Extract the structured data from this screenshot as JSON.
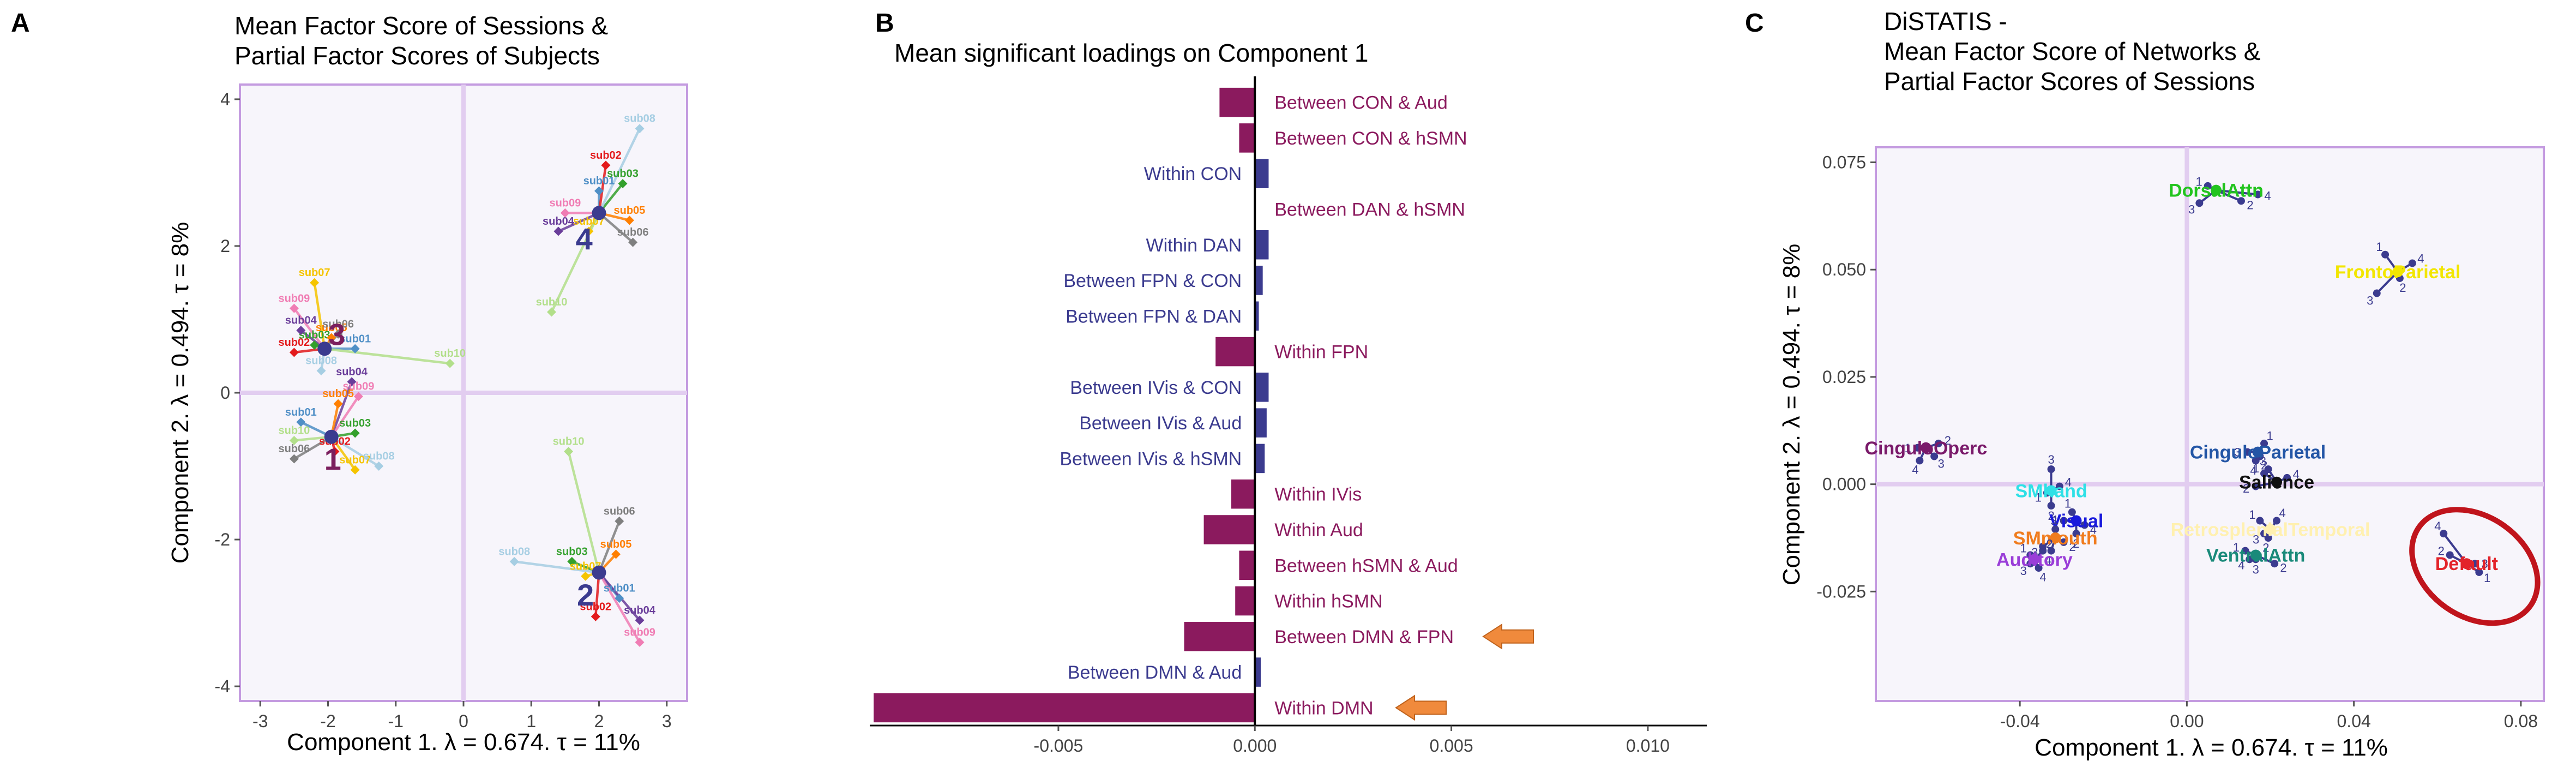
{
  "chart_data": [
    {
      "panel_letter": "A",
      "type": "scatter",
      "title": [
        "Mean Factor Score of Sessions &",
        "Partial Factor Scores of Subjects"
      ],
      "xlabel": "Component 1.   λ = 0.674.   τ = 11%",
      "ylabel": "Component 2.   λ = 0.494.   τ = 8%",
      "xlim": [
        -3.3,
        3.3
      ],
      "ylim": [
        -4.2,
        4.2
      ],
      "xticks": [
        -3,
        -2,
        -1,
        0,
        1,
        2,
        3
      ],
      "yticks": [
        -4,
        -2,
        0,
        2,
        4
      ],
      "center_color": "#3b3b8f",
      "groups": [
        {
          "label": "1",
          "label_color": "#7b1f5e",
          "center": [
            -1.95,
            -0.6
          ],
          "label_offset": [
            0.02,
            -0.3
          ],
          "subjects": [
            {
              "name": "sub01",
              "x": -2.4,
              "y": -0.4,
              "color": "#4f8fc6"
            },
            {
              "name": "sub02",
              "x": -1.9,
              "y": -0.8,
              "color": "#e31a1c"
            },
            {
              "name": "sub03",
              "x": -1.6,
              "y": -0.55,
              "color": "#33a02c"
            },
            {
              "name": "sub04",
              "x": -1.65,
              "y": 0.15,
              "color": "#6a3d9a"
            },
            {
              "name": "sub05",
              "x": -1.85,
              "y": -0.15,
              "color": "#ff7f00"
            },
            {
              "name": "sub06",
              "x": -2.5,
              "y": -0.9,
              "color": "#7f7f7f"
            },
            {
              "name": "sub07",
              "x": -1.6,
              "y": -1.05,
              "color": "#f5c400"
            },
            {
              "name": "sub08",
              "x": -1.25,
              "y": -1.0,
              "color": "#a6cee3"
            },
            {
              "name": "sub09",
              "x": -1.55,
              "y": -0.05,
              "color": "#f07db4"
            },
            {
              "name": "sub10",
              "x": -2.5,
              "y": -0.65,
              "color": "#b2df8a"
            }
          ]
        },
        {
          "label": "2",
          "label_color": "#3b3b8f",
          "center": [
            2.0,
            -2.45
          ],
          "label_offset": [
            -0.2,
            -0.3
          ],
          "subjects": [
            {
              "name": "sub01",
              "x": 2.3,
              "y": -2.8,
              "color": "#4f8fc6"
            },
            {
              "name": "sub02",
              "x": 1.95,
              "y": -3.05,
              "color": "#e31a1c"
            },
            {
              "name": "sub03",
              "x": 1.6,
              "y": -2.3,
              "color": "#33a02c"
            },
            {
              "name": "sub04",
              "x": 2.6,
              "y": -3.1,
              "color": "#6a3d9a"
            },
            {
              "name": "sub05",
              "x": 2.25,
              "y": -2.2,
              "color": "#ff7f00"
            },
            {
              "name": "sub06",
              "x": 2.3,
              "y": -1.75,
              "color": "#7f7f7f"
            },
            {
              "name": "sub07",
              "x": 1.8,
              "y": -2.5,
              "color": "#f5c400"
            },
            {
              "name": "sub08",
              "x": 0.75,
              "y": -2.3,
              "color": "#a6cee3"
            },
            {
              "name": "sub09",
              "x": 2.6,
              "y": -3.4,
              "color": "#f07db4"
            },
            {
              "name": "sub10",
              "x": 1.55,
              "y": -0.8,
              "color": "#b2df8a"
            }
          ]
        },
        {
          "label": "3",
          "label_color": "#7b1f5e",
          "center": [
            -2.05,
            0.6
          ],
          "label_offset": [
            0.18,
            0.2
          ],
          "subjects": [
            {
              "name": "sub01",
              "x": -1.6,
              "y": 0.6,
              "color": "#4f8fc6"
            },
            {
              "name": "sub02",
              "x": -2.5,
              "y": 0.55,
              "color": "#e31a1c"
            },
            {
              "name": "sub03",
              "x": -2.2,
              "y": 0.65,
              "color": "#33a02c"
            },
            {
              "name": "sub04",
              "x": -2.4,
              "y": 0.85,
              "color": "#6a3d9a"
            },
            {
              "name": "sub05",
              "x": -1.95,
              "y": 0.75,
              "color": "#ff7f00"
            },
            {
              "name": "sub06",
              "x": -1.85,
              "y": 0.8,
              "color": "#7f7f7f"
            },
            {
              "name": "sub07",
              "x": -2.2,
              "y": 1.5,
              "color": "#f5c400"
            },
            {
              "name": "sub08",
              "x": -2.1,
              "y": 0.3,
              "color": "#a6cee3"
            },
            {
              "name": "sub09",
              "x": -2.5,
              "y": 1.15,
              "color": "#f07db4"
            },
            {
              "name": "sub10",
              "x": -0.2,
              "y": 0.4,
              "color": "#b2df8a"
            }
          ]
        },
        {
          "label": "4",
          "label_color": "#3b3b8f",
          "center": [
            2.0,
            2.45
          ],
          "label_offset": [
            -0.22,
            -0.35
          ],
          "subjects": [
            {
              "name": "sub01",
              "x": 2.0,
              "y": 2.75,
              "color": "#4f8fc6"
            },
            {
              "name": "sub02",
              "x": 2.1,
              "y": 3.1,
              "color": "#e31a1c"
            },
            {
              "name": "sub03",
              "x": 2.35,
              "y": 2.85,
              "color": "#33a02c"
            },
            {
              "name": "sub04",
              "x": 1.4,
              "y": 2.2,
              "color": "#6a3d9a"
            },
            {
              "name": "sub05",
              "x": 2.45,
              "y": 2.35,
              "color": "#ff7f00"
            },
            {
              "name": "sub06",
              "x": 2.5,
              "y": 2.05,
              "color": "#7f7f7f"
            },
            {
              "name": "sub07",
              "x": 1.85,
              "y": 2.2,
              "color": "#f5c400"
            },
            {
              "name": "sub08",
              "x": 2.6,
              "y": 3.6,
              "color": "#a6cee3"
            },
            {
              "name": "sub09",
              "x": 1.5,
              "y": 2.45,
              "color": "#f07db4"
            },
            {
              "name": "sub10",
              "x": 1.3,
              "y": 1.1,
              "color": "#b2df8a"
            }
          ]
        }
      ]
    },
    {
      "panel_letter": "B",
      "type": "bar",
      "title": "Mean significant loadings on Component 1",
      "xlim": [
        -0.0098,
        0.0115
      ],
      "xticks": [
        -0.005,
        0.0,
        0.005,
        0.01
      ],
      "xtick_labels": [
        "-0.005",
        "0.000",
        "0.005",
        "0.010"
      ],
      "colors": {
        "negative": "#8b1a5e",
        "positive": "#3b3b8f",
        "arrow": "#f08a3c",
        "arrow_stroke": "#c0631d"
      },
      "categories": [
        "Between CON & Aud",
        "Between CON & hSMN",
        "Within CON",
        "Between DAN & hSMN",
        "Within DAN",
        "Between FPN & CON",
        "Between FPN & DAN",
        "Within FPN",
        "Between IVis & CON",
        "Between IVis & Aud",
        "Between IVis & hSMN",
        "Within IVis",
        "Within Aud",
        "Between hSMN & Aud",
        "Within hSMN",
        "Between DMN & FPN",
        "Between DMN & Aud",
        "Within DMN"
      ],
      "values": [
        -0.0009,
        -0.0004,
        0.00035,
        0.0,
        0.00035,
        0.0002,
        0.0001,
        -0.001,
        0.00035,
        0.0003,
        0.00025,
        -0.0006,
        -0.0013,
        -0.0004,
        -0.0005,
        -0.0018,
        0.00015,
        -0.0097
      ],
      "highlighted": [
        "Between DMN & FPN",
        "Within DMN"
      ]
    },
    {
      "panel_letter": "C",
      "type": "scatter",
      "title": [
        "DiSTATIS -",
        "Mean Factor Score of Networks &",
        "Partial Factor Scores of Sessions"
      ],
      "xlabel": "Component 1.   λ = 0.674.   τ = 11%",
      "ylabel": "Component 2.   λ = 0.494.   τ = 8%",
      "xlim": [
        -0.0745,
        0.0855
      ],
      "ylim": [
        -0.0505,
        0.0785
      ],
      "xticks": [
        -0.04,
        0.0,
        0.04,
        0.08
      ],
      "xtick_labels": [
        "-0.04",
        "0.00",
        "0.04",
        "0.08"
      ],
      "yticks": [
        -0.025,
        0.0,
        0.025,
        0.05,
        0.075
      ],
      "ytick_labels": [
        "-0.025",
        "0.000",
        "0.025",
        "0.050",
        "0.075"
      ],
      "highlight_ellipse_color": "#c0141c",
      "networks": [
        {
          "name": "DorsalAttn",
          "color": "#22c41e",
          "x": 0.007,
          "y": 0.0685,
          "sessions": [
            {
              "label": "1",
              "x": 0.005,
              "y": 0.0695
            },
            {
              "label": "2",
              "x": 0.013,
              "y": 0.066
            },
            {
              "label": "3",
              "x": 0.003,
              "y": 0.0655
            },
            {
              "label": "4",
              "x": 0.017,
              "y": 0.0675
            }
          ]
        },
        {
          "name": "FrontoParietal",
          "color": "#f2e600",
          "x": 0.0505,
          "y": 0.0495,
          "sessions": [
            {
              "label": "1",
              "x": 0.0475,
              "y": 0.0535
            },
            {
              "label": "2",
              "x": 0.051,
              "y": 0.048
            },
            {
              "label": "3",
              "x": 0.0455,
              "y": 0.0445
            },
            {
              "label": "4",
              "x": 0.054,
              "y": 0.0515
            }
          ]
        },
        {
          "name": "CinguloOperc",
          "color": "#7a1a6a",
          "x": -0.0625,
          "y": 0.0085,
          "sessions": [
            {
              "label": "1",
              "x": -0.0645,
              "y": 0.0085
            },
            {
              "label": "2",
              "x": -0.0595,
              "y": 0.0095
            },
            {
              "label": "3",
              "x": -0.0605,
              "y": 0.0065
            },
            {
              "label": "4",
              "x": -0.064,
              "y": 0.0055
            }
          ]
        },
        {
          "name": "CinguloParietal",
          "color": "#2456a6",
          "x": 0.017,
          "y": 0.0075,
          "sessions": [
            {
              "label": "1",
              "x": 0.0185,
              "y": 0.0095
            },
            {
              "label": "2",
              "x": 0.0175,
              "y": 0.0065
            },
            {
              "label": "3",
              "x": 0.0145,
              "y": 0.0075
            },
            {
              "label": "4",
              "x": 0.0165,
              "y": 0.0055
            }
          ]
        },
        {
          "name": "Salience",
          "color": "#111111",
          "x": 0.0215,
          "y": 0.0005,
          "sessions": [
            {
              "label": "1",
              "x": 0.0185,
              "y": 0.0025
            },
            {
              "label": "2",
              "x": 0.0165,
              "y": -0.0005
            },
            {
              "label": "3",
              "x": 0.0195,
              "y": 0.0035
            },
            {
              "label": "4",
              "x": 0.024,
              "y": 0.0015
            }
          ]
        },
        {
          "name": "SMhand",
          "color": "#2ee0e6",
          "x": -0.0325,
          "y": -0.0015,
          "sessions": [
            {
              "label": "1",
              "x": -0.0335,
              "y": -0.002
            },
            {
              "label": "2",
              "x": -0.0325,
              "y": -0.005
            },
            {
              "label": "3",
              "x": -0.0325,
              "y": 0.0035
            },
            {
              "label": "4",
              "x": -0.0305,
              "y": -0.0005
            }
          ]
        },
        {
          "name": "Visual",
          "color": "#1a1adc",
          "x": -0.0265,
          "y": -0.0085,
          "sessions": [
            {
              "label": "1",
              "x": -0.0275,
              "y": -0.0065
            },
            {
              "label": "2",
              "x": -0.0265,
              "y": -0.0115
            },
            {
              "label": "3",
              "x": -0.0295,
              "y": -0.0085
            },
            {
              "label": "4",
              "x": -0.0245,
              "y": -0.0095
            }
          ]
        },
        {
          "name": "RetrosplenialTemporal",
          "color": "#fff0b0",
          "x": 0.02,
          "y": -0.0105,
          "sessions": [
            {
              "label": "1",
              "x": 0.0175,
              "y": -0.0085
            },
            {
              "label": "2",
              "x": 0.0195,
              "y": -0.0125
            },
            {
              "label": "3",
              "x": 0.0185,
              "y": -0.0115
            },
            {
              "label": "4",
              "x": 0.0215,
              "y": -0.0085
            }
          ]
        },
        {
          "name": "SMmouth",
          "color": "#f07c1e",
          "x": -0.0315,
          "y": -0.0125,
          "sessions": [
            {
              "label": "1",
              "x": -0.0315,
              "y": -0.0105
            },
            {
              "label": "2",
              "x": -0.0295,
              "y": -0.0135
            },
            {
              "label": "3",
              "x": -0.0345,
              "y": -0.0145
            },
            {
              "label": "4",
              "x": -0.0325,
              "y": -0.0155
            }
          ]
        },
        {
          "name": "VentralAttn",
          "color": "#1a8a7a",
          "x": 0.0165,
          "y": -0.0165,
          "sessions": [
            {
              "label": "1",
              "x": 0.014,
              "y": -0.0155
            },
            {
              "label": "2",
              "x": 0.021,
              "y": -0.0185
            },
            {
              "label": "3",
              "x": 0.0165,
              "y": -0.0175
            },
            {
              "label": "4",
              "x": 0.015,
              "y": -0.0175
            }
          ]
        },
        {
          "name": "Auditory",
          "color": "#9a3ed8",
          "x": -0.0365,
          "y": -0.0175,
          "sessions": [
            {
              "label": "1",
              "x": -0.0375,
              "y": -0.0165
            },
            {
              "label": "2",
              "x": -0.0345,
              "y": -0.0155
            },
            {
              "label": "3",
              "x": -0.0375,
              "y": -0.0185
            },
            {
              "label": "4",
              "x": -0.0355,
              "y": -0.0195
            }
          ]
        },
        {
          "name": "Default",
          "color": "#e3232a",
          "x": 0.067,
          "y": -0.0185,
          "sessions": [
            {
              "label": "1",
              "x": 0.07,
              "y": -0.0205
            },
            {
              "label": "2",
              "x": 0.063,
              "y": -0.0165
            },
            {
              "label": "3",
              "x": 0.069,
              "y": -0.0185
            },
            {
              "label": "4",
              "x": 0.0615,
              "y": -0.0115
            }
          ]
        }
      ]
    }
  ]
}
